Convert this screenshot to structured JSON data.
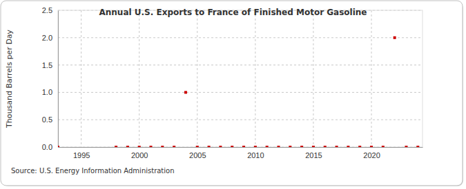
{
  "chart_data": {
    "type": "scatter",
    "title": "Annual U.S. Exports to France of Finished Motor Gasoline",
    "y_label": "Thousand Barrels per Day",
    "source": "Source: U.S. Energy Information Administration",
    "x": [
      1993,
      1998,
      1999,
      2000,
      2001,
      2002,
      2003,
      2004,
      2005,
      2006,
      2007,
      2008,
      2009,
      2010,
      2011,
      2012,
      2013,
      2014,
      2015,
      2016,
      2017,
      2018,
      2019,
      2020,
      2021,
      2022,
      2023,
      2024
    ],
    "values": [
      0,
      0,
      0,
      0,
      0,
      0,
      0,
      1,
      0,
      0,
      0,
      0,
      0,
      0,
      0,
      0,
      0,
      0,
      0,
      0,
      0,
      0,
      0,
      0,
      0,
      2,
      0,
      0
    ],
    "color": "#cc0000",
    "marker": "square",
    "xlim": [
      1993,
      2024.4
    ],
    "xticks": [
      1995,
      2000,
      2005,
      2010,
      2015,
      2020
    ],
    "ylim": [
      0,
      2.5
    ],
    "yticks": [
      {
        "value": 0,
        "label": "0.0"
      },
      0.5,
      {
        "value": 1,
        "label": "1.0"
      },
      1.5,
      {
        "value": 2,
        "label": "2.0"
      },
      2.5
    ],
    "grid": true
  }
}
